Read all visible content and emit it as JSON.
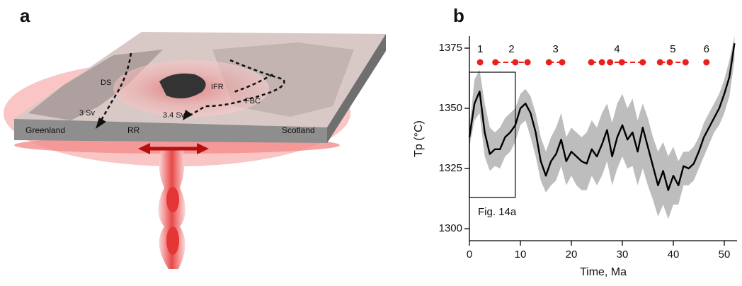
{
  "panel_a": {
    "panel_label": "a",
    "labels": [
      "DS",
      "IFR",
      "FBC",
      "3 Sv",
      "3.4 Sv",
      "RR",
      "Greenland",
      "Scotland"
    ]
  },
  "chart_data": {
    "type": "line",
    "panel_label": "b",
    "xlabel": "Time, Ma",
    "ylabel": "Tp (°C)",
    "xlim": [
      0,
      52.5
    ],
    "ylim": [
      1295,
      1380
    ],
    "xticks": [
      0,
      10,
      20,
      30,
      40,
      50
    ],
    "yticks": [
      1300,
      1325,
      1350,
      1375
    ],
    "x": [
      0,
      1,
      2,
      3,
      4,
      5,
      6,
      7,
      8,
      9,
      10,
      11,
      12,
      13,
      14,
      15,
      16,
      17,
      18,
      19,
      20,
      21,
      22,
      23,
      24,
      25,
      26,
      27,
      28,
      29,
      30,
      31,
      32,
      33,
      34,
      35,
      36,
      37,
      38,
      39,
      40,
      41,
      42,
      43,
      44,
      45,
      46,
      47,
      48,
      49,
      50,
      51,
      52
    ],
    "band": {
      "color": "#bdbdbd",
      "lower": [
        1334,
        1345,
        1348,
        1330,
        1324,
        1326,
        1325,
        1330,
        1332,
        1336,
        1343,
        1345,
        1338,
        1330,
        1320,
        1315,
        1318,
        1320,
        1326,
        1318,
        1322,
        1318,
        1316,
        1316,
        1322,
        1318,
        1322,
        1328,
        1318,
        1325,
        1330,
        1325,
        1326,
        1318,
        1325,
        1318,
        1312,
        1305,
        1310,
        1304,
        1310,
        1310,
        1318,
        1318,
        1320,
        1325,
        1330,
        1335,
        1340,
        1343,
        1348,
        1355,
        1370
      ],
      "upper": [
        1342,
        1362,
        1366,
        1352,
        1342,
        1340,
        1342,
        1346,
        1348,
        1350,
        1356,
        1358,
        1355,
        1348,
        1338,
        1332,
        1338,
        1342,
        1348,
        1338,
        1342,
        1340,
        1338,
        1340,
        1345,
        1342,
        1348,
        1352,
        1344,
        1352,
        1356,
        1350,
        1354,
        1345,
        1352,
        1346,
        1338,
        1332,
        1336,
        1330,
        1334,
        1328,
        1332,
        1332,
        1334,
        1338,
        1344,
        1348,
        1352,
        1356,
        1362,
        1370,
        1380
      ]
    },
    "series": [
      {
        "color": "#000000",
        "values": [
          1338,
          1352,
          1357,
          1340,
          1331,
          1333,
          1333,
          1338,
          1340,
          1343,
          1350,
          1352,
          1348,
          1340,
          1328,
          1322,
          1328,
          1331,
          1337,
          1328,
          1332,
          1330,
          1328,
          1327,
          1333,
          1330,
          1335,
          1341,
          1330,
          1338,
          1343,
          1337,
          1340,
          1332,
          1342,
          1334,
          1326,
          1318,
          1324,
          1316,
          1322,
          1318,
          1326,
          1325,
          1327,
          1332,
          1338,
          1342,
          1346,
          1350,
          1356,
          1363,
          1377
        ]
      }
    ],
    "events": {
      "color": "#e8201e",
      "groups": [
        {
          "label": "1",
          "x": [
            2.1
          ]
        },
        {
          "label": "2",
          "x": [
            5.1,
            9.0,
            11.4
          ]
        },
        {
          "label": "3",
          "x": [
            15.6,
            18.2
          ]
        },
        {
          "label": "4",
          "x": [
            23.9,
            26.0,
            27.6,
            29.9,
            34.0
          ]
        },
        {
          "label": "5",
          "x": [
            37.4,
            39.3,
            42.4
          ]
        },
        {
          "label": "6",
          "x": [
            46.5
          ]
        }
      ]
    },
    "box": {
      "label": "Fig. 14a",
      "x": [
        0,
        9
      ],
      "y": [
        1313,
        1365
      ]
    }
  }
}
